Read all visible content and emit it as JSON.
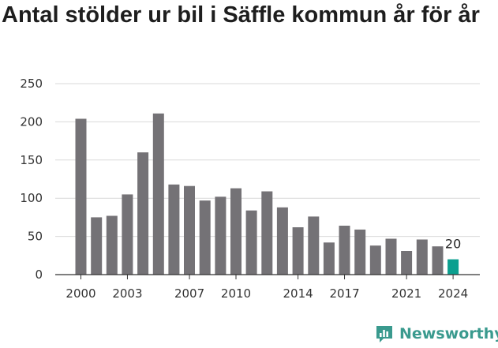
{
  "colors": {
    "bar": "#747276",
    "highlight": "#0b9f8f",
    "grid": "#d9d9d9",
    "brand": "#3a9a8e"
  },
  "brand": {
    "name": "Newsworthy",
    "icon": "chart-logo-icon"
  },
  "chart_data": {
    "type": "bar",
    "title": "Antal stölder ur bil i Säffle kommun år för år",
    "xlabel": "",
    "ylabel": "",
    "ylim": [
      0,
      250
    ],
    "yticks": [
      "0",
      "50",
      "100",
      "150",
      "200",
      "250"
    ],
    "grid": true,
    "xtick_labels": [
      "2000",
      "2003",
      "2007",
      "2010",
      "2014",
      "2017",
      "2021",
      "2024"
    ],
    "categories": [
      "2000",
      "2001",
      "2002",
      "2003",
      "2004",
      "2005",
      "2006",
      "2007",
      "2008",
      "2009",
      "2010",
      "2011",
      "2012",
      "2013",
      "2014",
      "2015",
      "2016",
      "2017",
      "2018",
      "2019",
      "2020",
      "2021",
      "2022",
      "2023",
      "2024"
    ],
    "values": [
      204,
      75,
      77,
      105,
      160,
      211,
      118,
      116,
      97,
      102,
      113,
      84,
      109,
      88,
      62,
      76,
      42,
      64,
      59,
      38,
      47,
      31,
      46,
      37,
      20
    ],
    "highlight_index": 24,
    "data_labels": [
      {
        "category": "2024",
        "text": "20"
      }
    ]
  }
}
